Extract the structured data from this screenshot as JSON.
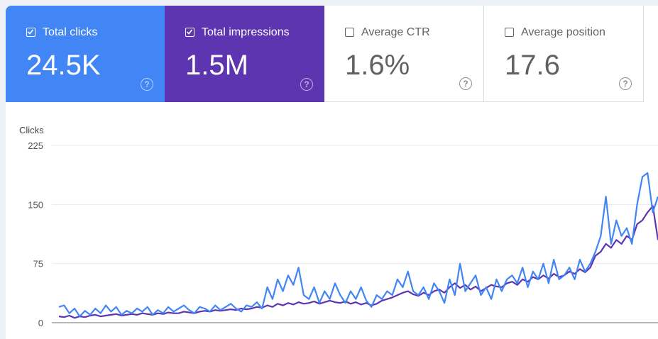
{
  "metrics": [
    {
      "label": "Total clicks",
      "value": "24.5K",
      "checked": true,
      "color": "#4285f4"
    },
    {
      "label": "Total impressions",
      "value": "1.5M",
      "checked": true,
      "color": "#5e35b1"
    },
    {
      "label": "Average CTR",
      "value": "1.6%",
      "checked": false
    },
    {
      "label": "Average position",
      "value": "17.6",
      "checked": false
    }
  ],
  "help_glyph": "?",
  "chart_data": {
    "type": "line",
    "ylabel": "Clicks",
    "ylim": [
      0,
      225
    ],
    "yticks": [
      "0",
      "75",
      "150",
      "225"
    ],
    "grid": true,
    "series": [
      {
        "color": "#4285f4",
        "values": [
          20,
          22,
          12,
          18,
          8,
          15,
          10,
          18,
          12,
          22,
          14,
          20,
          10,
          15,
          12,
          18,
          14,
          20,
          10,
          16,
          12,
          20,
          14,
          18,
          22,
          16,
          12,
          20,
          18,
          14,
          22,
          16,
          20,
          24,
          18,
          14,
          22,
          20,
          26,
          18,
          45,
          30,
          55,
          40,
          60,
          48,
          70,
          35,
          30,
          45,
          25,
          40,
          30,
          50,
          35,
          25,
          40,
          30,
          45,
          28,
          20,
          35,
          30,
          40,
          35,
          55,
          45,
          65,
          40,
          35,
          45,
          30,
          50,
          40,
          25,
          55,
          35,
          75,
          40,
          50,
          60,
          35,
          45,
          30,
          55,
          40,
          55,
          60,
          50,
          70,
          45,
          65,
          55,
          75,
          50,
          80,
          55,
          60,
          70,
          55,
          80,
          65,
          75,
          90,
          110,
          160,
          100,
          130,
          110,
          120,
          100,
          150,
          185,
          190,
          140,
          160
        ]
      },
      {
        "color": "#5e35b1",
        "values": [
          8,
          7,
          9,
          6,
          8,
          7,
          9,
          10,
          8,
          9,
          10,
          11,
          9,
          10,
          11,
          10,
          12,
          11,
          10,
          12,
          11,
          13,
          12,
          12,
          14,
          13,
          12,
          14,
          15,
          14,
          16,
          15,
          16,
          17,
          16,
          18,
          17,
          18,
          20,
          19,
          22,
          20,
          24,
          22,
          25,
          23,
          26,
          24,
          25,
          27,
          24,
          26,
          28,
          26,
          25,
          27,
          24,
          26,
          23,
          25,
          22,
          24,
          28,
          30,
          32,
          35,
          38,
          40,
          36,
          34,
          38,
          35,
          40,
          42,
          38,
          45,
          50,
          44,
          48,
          42,
          46,
          40,
          44,
          48,
          46,
          45,
          50,
          52,
          48,
          55,
          52,
          58,
          55,
          60,
          56,
          62,
          58,
          60,
          65,
          62,
          68,
          64,
          70,
          85,
          90,
          100,
          95,
          105,
          100,
          110,
          105,
          125,
          130,
          140,
          148,
          105
        ]
      }
    ]
  }
}
